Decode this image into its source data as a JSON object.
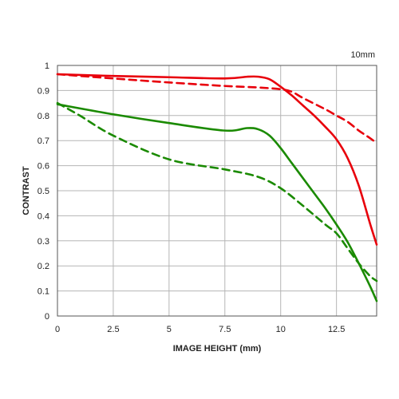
{
  "chart_data": {
    "type": "line",
    "annotation": "10mm",
    "xlabel": "IMAGE HEIGHT (mm)",
    "ylabel": "CONTRAST",
    "xlim": [
      0,
      14.3
    ],
    "ylim": [
      0,
      1
    ],
    "xticks": [
      "0",
      "2.5",
      "5",
      "7.5",
      "10",
      "12.5"
    ],
    "yticks": [
      "0",
      "0.1",
      "0.2",
      "0.3",
      "0.4",
      "0.5",
      "0.6",
      "0.7",
      "0.8",
      "0.9",
      "1"
    ],
    "grid": true,
    "legend": "none",
    "series": [
      {
        "color": "#e8000b",
        "style": "solid",
        "x": [
          0,
          2.5,
          5,
          7.5,
          8.5,
          9,
          9.5,
          10,
          10.5,
          11,
          11.5,
          12,
          12.5,
          13,
          13.5,
          14,
          14.3
        ],
        "y": [
          0.965,
          0.958,
          0.953,
          0.948,
          0.955,
          0.955,
          0.945,
          0.915,
          0.88,
          0.84,
          0.8,
          0.755,
          0.705,
          0.63,
          0.52,
          0.37,
          0.285
        ]
      },
      {
        "color": "#e8000b",
        "style": "dashed",
        "x": [
          0,
          2.5,
          5,
          7.5,
          9,
          10,
          10.5,
          11,
          12,
          12.5,
          13,
          13.5,
          14,
          14.3
        ],
        "y": [
          0.965,
          0.948,
          0.932,
          0.918,
          0.912,
          0.905,
          0.895,
          0.87,
          0.825,
          0.8,
          0.775,
          0.74,
          0.71,
          0.69
        ]
      },
      {
        "color": "#1a8a00",
        "style": "solid",
        "x": [
          0,
          2.5,
          5,
          7.5,
          8.5,
          9,
          9.5,
          10,
          10.5,
          11,
          11.5,
          12,
          12.5,
          13,
          13.5,
          14,
          14.3
        ],
        "y": [
          0.845,
          0.805,
          0.77,
          0.74,
          0.75,
          0.745,
          0.72,
          0.67,
          0.61,
          0.55,
          0.49,
          0.43,
          0.365,
          0.295,
          0.21,
          0.12,
          0.06
        ]
      },
      {
        "color": "#1a8a00",
        "style": "dashed",
        "x": [
          0,
          1,
          2.5,
          5,
          7.5,
          9,
          10,
          11,
          12,
          12.5,
          13,
          13.5,
          14,
          14.3
        ],
        "y": [
          0.85,
          0.8,
          0.72,
          0.625,
          0.585,
          0.555,
          0.51,
          0.44,
          0.365,
          0.33,
          0.27,
          0.21,
          0.16,
          0.14
        ]
      }
    ]
  }
}
